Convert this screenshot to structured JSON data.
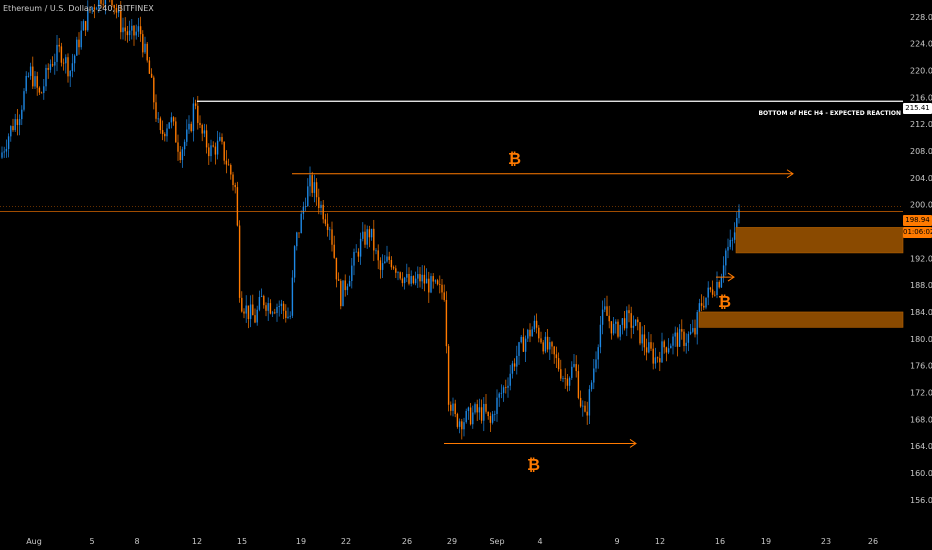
{
  "header": {
    "title": "Ethereum / U.S. Dollar, 240, BITFINEX"
  },
  "annotation": {
    "label": "BOTTOM of HEC H4 - EXPECTED REACTION"
  },
  "price_tags": {
    "level": "215.41",
    "current_price": "198.94",
    "countdown": "01:06:02"
  },
  "btc_symbol": "₿",
  "colors": {
    "background": "#000000",
    "up_candle": "#1e88e5",
    "down_candle": "#ff7a00",
    "zone": "#8a4a00",
    "arrow": "#ff7a00",
    "level_line": "#ffffff"
  },
  "chart_data": {
    "type": "candlestick",
    "title": "",
    "xlabel": "",
    "ylabel": "",
    "ylim": [
      154,
      230
    ],
    "y_ticks": [
      156,
      160,
      164,
      168,
      172,
      176,
      180,
      184,
      188,
      192,
      196,
      200,
      204,
      208,
      212,
      216,
      220,
      224,
      228
    ],
    "x_ticks": [
      "Aug",
      "5",
      "8",
      "12",
      "15",
      "19",
      "22",
      "26",
      "29",
      "Sep",
      "4",
      "9",
      "12",
      "16",
      "19",
      "23",
      "26"
    ],
    "price_path": [
      [
        0,
        207
      ],
      [
        10,
        211
      ],
      [
        20,
        214
      ],
      [
        30,
        220
      ],
      [
        40,
        216
      ],
      [
        50,
        221
      ],
      [
        60,
        223
      ],
      [
        70,
        220
      ],
      [
        80,
        225
      ],
      [
        90,
        229
      ],
      [
        100,
        231
      ],
      [
        110,
        232
      ],
      [
        120,
        227
      ],
      [
        130,
        225
      ],
      [
        140,
        226
      ],
      [
        150,
        219
      ],
      [
        160,
        210
      ],
      [
        170,
        213
      ],
      [
        180,
        208
      ],
      [
        190,
        211
      ],
      [
        195,
        216
      ],
      [
        200,
        211
      ],
      [
        210,
        208
      ],
      [
        220,
        209
      ],
      [
        230,
        205
      ],
      [
        236,
        202
      ],
      [
        240,
        186
      ],
      [
        248,
        184
      ],
      [
        255,
        183
      ],
      [
        262,
        186
      ],
      [
        270,
        185
      ],
      [
        280,
        185
      ],
      [
        290,
        183
      ],
      [
        295,
        194
      ],
      [
        300,
        197
      ],
      [
        305,
        201
      ],
      [
        310,
        203
      ],
      [
        315,
        202
      ],
      [
        320,
        200
      ],
      [
        330,
        197
      ],
      [
        340,
        186
      ],
      [
        350,
        190
      ],
      [
        360,
        194
      ],
      [
        370,
        196
      ],
      [
        380,
        190
      ],
      [
        390,
        192
      ],
      [
        400,
        190
      ],
      [
        410,
        188
      ],
      [
        420,
        189
      ],
      [
        430,
        188
      ],
      [
        440,
        187
      ],
      [
        445,
        187
      ],
      [
        448,
        172
      ],
      [
        455,
        168
      ],
      [
        465,
        168
      ],
      [
        475,
        169
      ],
      [
        485,
        169
      ],
      [
        490,
        167
      ],
      [
        495,
        170
      ],
      [
        505,
        173
      ],
      [
        515,
        177
      ],
      [
        525,
        180
      ],
      [
        535,
        182
      ],
      [
        545,
        179
      ],
      [
        555,
        177
      ],
      [
        565,
        174
      ],
      [
        575,
        176
      ],
      [
        580,
        171
      ],
      [
        585,
        168
      ],
      [
        590,
        172
      ],
      [
        595,
        177
      ],
      [
        600,
        182
      ],
      [
        605,
        184
      ],
      [
        615,
        181
      ],
      [
        625,
        183
      ],
      [
        635,
        182
      ],
      [
        645,
        179
      ],
      [
        655,
        177
      ],
      [
        665,
        179
      ],
      [
        675,
        180
      ],
      [
        685,
        180
      ],
      [
        695,
        181
      ],
      [
        700,
        185
      ],
      [
        710,
        187
      ],
      [
        720,
        189
      ],
      [
        725,
        193
      ],
      [
        732,
        194
      ],
      [
        736,
        197
      ],
      [
        740,
        199
      ]
    ],
    "levels": [
      {
        "price": 215.41,
        "label": "BOTTOM of HEC H4 - EXPECTED REACTION",
        "from_x_label": "12"
      },
      {
        "price": 198.94,
        "kind": "current_price"
      }
    ],
    "zones": [
      {
        "top": 196.6,
        "bottom": 192.8
      },
      {
        "top": 184.0,
        "bottom": 181.7
      }
    ],
    "arrows": [
      {
        "price": 204.6
      },
      {
        "price": 164.4
      },
      {
        "price": 189.2
      }
    ]
  }
}
